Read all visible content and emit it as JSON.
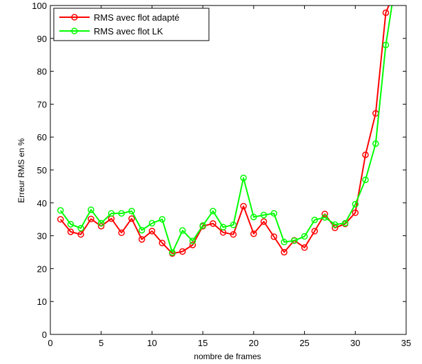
{
  "chart_data": {
    "type": "line",
    "title": "",
    "xlabel": "nombre de frames",
    "ylabel": "Erreur RMS en %",
    "xlim": [
      0,
      35
    ],
    "ylim": [
      0,
      100
    ],
    "xticks": [
      0,
      5,
      10,
      15,
      20,
      25,
      30,
      35
    ],
    "yticks": [
      0,
      10,
      20,
      30,
      40,
      50,
      60,
      70,
      80,
      90,
      100
    ],
    "grid": false,
    "legend_position": "top-left",
    "series": [
      {
        "name": "RMS avec flot adapté",
        "color": "#ff0000",
        "marker": "circle",
        "x": [
          1,
          2,
          3,
          4,
          5,
          6,
          7,
          8,
          9,
          10,
          11,
          12,
          13,
          14,
          15,
          16,
          17,
          18,
          19,
          20,
          21,
          22,
          23,
          24,
          25,
          26,
          27,
          28,
          29,
          30,
          31,
          32,
          33,
          33.3
        ],
        "y": [
          35,
          31.2,
          30.4,
          35.1,
          32.9,
          35.2,
          30.9,
          35.2,
          28.9,
          31.4,
          27.8,
          24.6,
          25.2,
          27.2,
          32.9,
          33.7,
          31,
          30.4,
          39,
          30.6,
          34.3,
          29.7,
          25,
          28.6,
          26.4,
          31.4,
          36.6,
          32.4,
          33.6,
          37,
          54.6,
          67.2,
          97.8,
          100
        ]
      },
      {
        "name": "RMS avec flot LK",
        "color": "#00ff00",
        "marker": "circle",
        "x": [
          1,
          2,
          3,
          4,
          5,
          6,
          7,
          8,
          9,
          10,
          11,
          12,
          13,
          14,
          15,
          16,
          17,
          18,
          19,
          20,
          21,
          22,
          23,
          24,
          25,
          26,
          27,
          28,
          29,
          30,
          31,
          32,
          33,
          33.6
        ],
        "y": [
          37.7,
          33.5,
          32.3,
          37.9,
          33.8,
          36.8,
          36.8,
          37.5,
          31.7,
          33.8,
          35,
          24.9,
          31.6,
          28.4,
          33.1,
          37.5,
          32.6,
          33.3,
          47.6,
          35.7,
          36.3,
          36.8,
          28.1,
          28.5,
          29.8,
          34.8,
          35.6,
          33.4,
          33.8,
          39.6,
          47,
          58,
          88,
          100
        ]
      }
    ]
  }
}
